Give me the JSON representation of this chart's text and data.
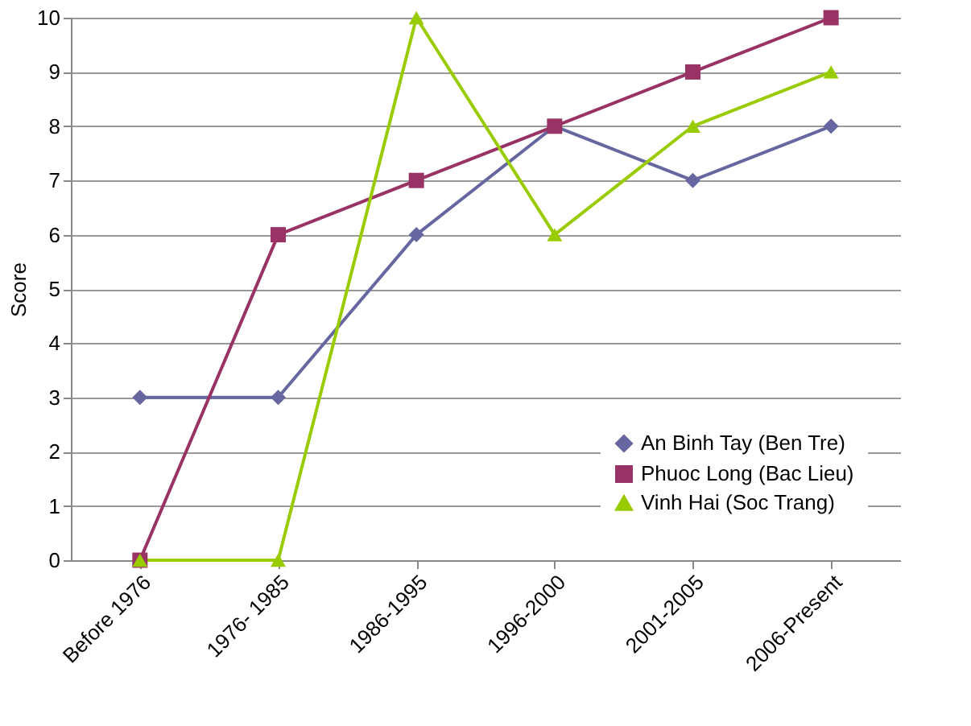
{
  "chart_data": {
    "type": "line",
    "ylabel": "Score",
    "categories": [
      "Before 1976",
      "1976- 1985",
      "1986-1995",
      "1996-2000",
      "2001-2005",
      "2006-Present"
    ],
    "series": [
      {
        "name": "An Binh Tay (Ben Tre)",
        "color": "#6666a0",
        "marker": "diamond",
        "values": [
          3,
          3,
          6,
          8,
          7,
          8
        ]
      },
      {
        "name": "Phuoc Long (Bac Lieu)",
        "color": "#993366",
        "marker": "square",
        "values": [
          0,
          6,
          7,
          8,
          9,
          10
        ]
      },
      {
        "name": "Vinh Hai (Soc Trang)",
        "color": "#99cc00",
        "marker": "triangle",
        "values": [
          0,
          0,
          10,
          6,
          8,
          9
        ]
      }
    ],
    "ylim": [
      0,
      10
    ],
    "yticks": [
      0,
      1,
      2,
      3,
      4,
      5,
      6,
      7,
      8,
      9,
      10
    ],
    "grid": "y",
    "legend": "bottom right",
    "line_style": "solid"
  }
}
